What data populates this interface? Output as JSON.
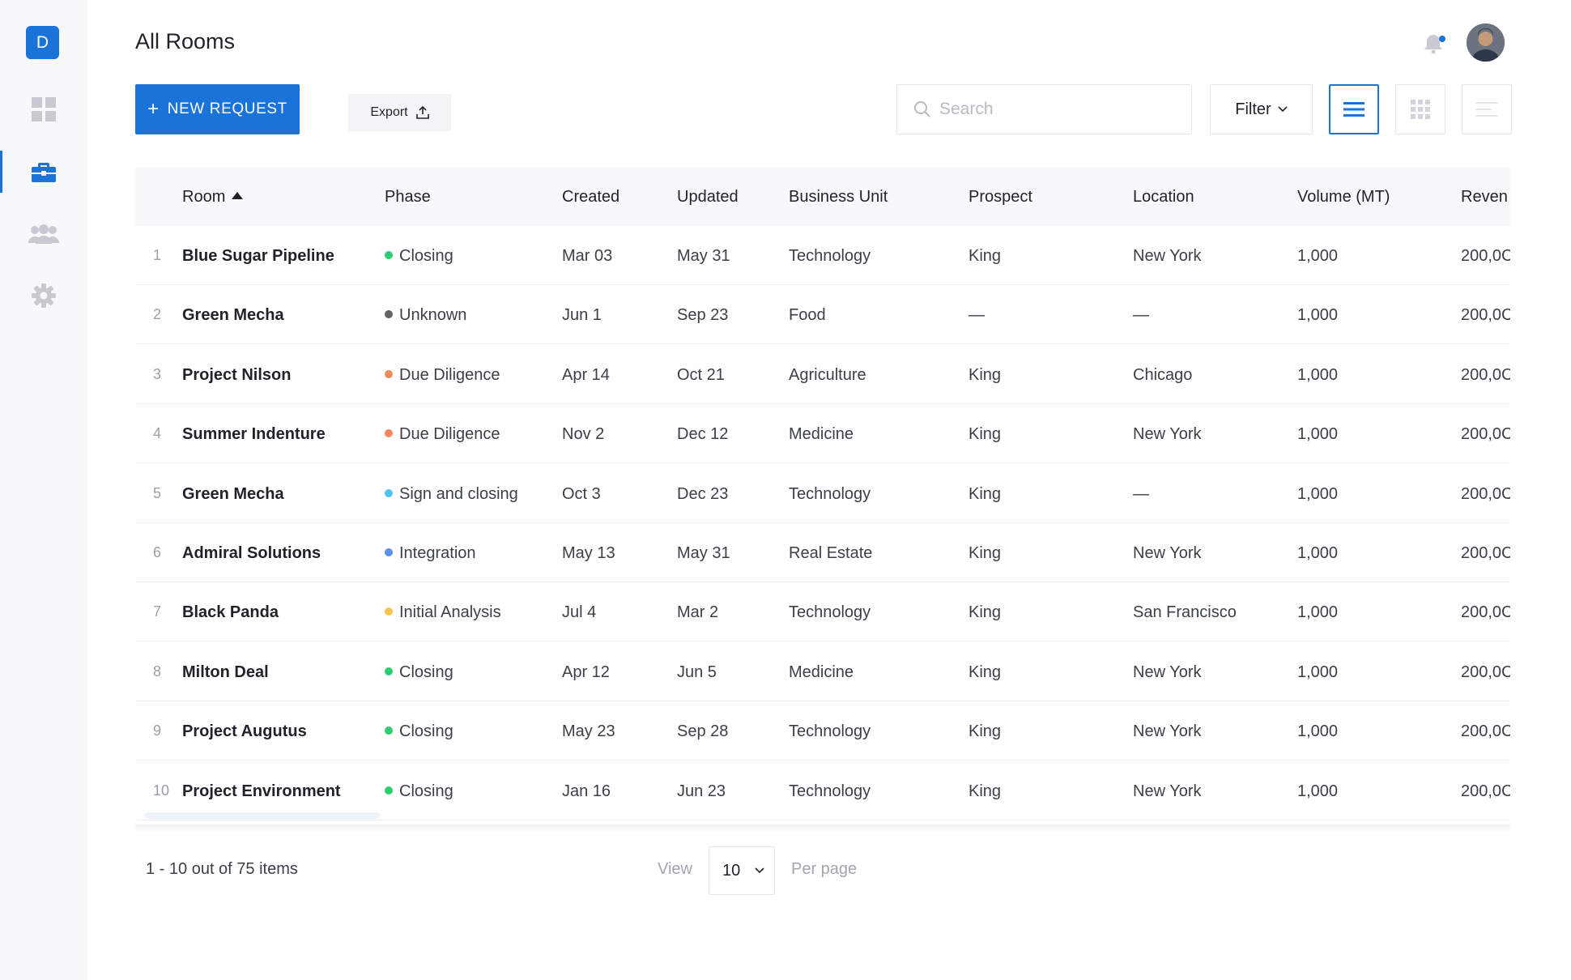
{
  "sidebar": {
    "logo_letter": "D",
    "items": [
      {
        "icon": "dashboard-icon",
        "active": false
      },
      {
        "icon": "briefcase-icon",
        "active": true
      },
      {
        "icon": "users-icon",
        "active": false
      },
      {
        "icon": "gear-icon",
        "active": false
      }
    ]
  },
  "header": {
    "title": "All Rooms"
  },
  "toolbar": {
    "new_request_label": "NEW REQUEST",
    "new_request_plus": "+",
    "export_label": "Export",
    "search_placeholder": "Search",
    "filter_label": "Filter"
  },
  "table": {
    "columns": {
      "room": "Room",
      "phase": "Phase",
      "created": "Created",
      "updated": "Updated",
      "business_unit": "Business Unit",
      "prospect": "Prospect",
      "location": "Location",
      "volume": "Volume (MT)",
      "revenue": "Reven"
    },
    "rows": [
      {
        "idx": "1",
        "room": "Blue Sugar Pipeline",
        "phase": "Closing",
        "phase_color": "#2ecc71",
        "created": "Mar 03",
        "updated": "May 31",
        "business_unit": "Technology",
        "prospect": "King",
        "location": "New York",
        "volume": "1,000",
        "revenue": "200,0C"
      },
      {
        "idx": "2",
        "room": "Green Mecha",
        "phase": "Unknown",
        "phase_color": "#5f6368",
        "created": "Jun 1",
        "updated": "Sep 23",
        "business_unit": "Food",
        "prospect": "—",
        "location": "—",
        "volume": "1,000",
        "revenue": "200,0C"
      },
      {
        "idx": "3",
        "room": "Project Nilson",
        "phase": "Due Diligence",
        "phase_color": "#f08a5d",
        "created": "Apr 14",
        "updated": "Oct 21",
        "business_unit": "Agriculture",
        "prospect": "King",
        "location": "Chicago",
        "volume": "1,000",
        "revenue": "200,0C"
      },
      {
        "idx": "4",
        "room": "Summer Indenture",
        "phase": "Due Diligence",
        "phase_color": "#f08a5d",
        "created": "Nov 2",
        "updated": "Dec 12",
        "business_unit": "Medicine",
        "prospect": "King",
        "location": "New York",
        "volume": "1,000",
        "revenue": "200,0C"
      },
      {
        "idx": "5",
        "room": "Green Mecha",
        "phase": "Sign and closing",
        "phase_color": "#4fc3f7",
        "created": "Oct 3",
        "updated": "Dec 23",
        "business_unit": "Technology",
        "prospect": "King",
        "location": "—",
        "volume": "1,000",
        "revenue": "200,0C"
      },
      {
        "idx": "6",
        "room": "Admiral Solutions",
        "phase": "Integration",
        "phase_color": "#5b8def",
        "created": "May 13",
        "updated": "May 31",
        "business_unit": "Real Estate",
        "prospect": "King",
        "location": "New York",
        "volume": "1,000",
        "revenue": "200,0C"
      },
      {
        "idx": "7",
        "room": "Black Panda",
        "phase": "Initial Analysis",
        "phase_color": "#f5c451",
        "created": "Jul 4",
        "updated": "Mar 2",
        "business_unit": "Technology",
        "prospect": "King",
        "location": "San Francisco",
        "volume": "1,000",
        "revenue": "200,0C"
      },
      {
        "idx": "8",
        "room": "Milton Deal",
        "phase": "Closing",
        "phase_color": "#2ecc71",
        "created": "Apr 12",
        "updated": "Jun 5",
        "business_unit": "Medicine",
        "prospect": "King",
        "location": "New York",
        "volume": "1,000",
        "revenue": "200,0C"
      },
      {
        "idx": "9",
        "room": "Project Augutus",
        "phase": "Closing",
        "phase_color": "#2ecc71",
        "created": "May 23",
        "updated": "Sep 28",
        "business_unit": "Technology",
        "prospect": "King",
        "location": "New York",
        "volume": "1,000",
        "revenue": "200,0C"
      },
      {
        "idx": "10",
        "room": "Project Environment",
        "phase": "Closing",
        "phase_color": "#2ecc71",
        "created": "Jan 16",
        "updated": "Jun 23",
        "business_unit": "Technology",
        "prospect": "King",
        "location": "New York",
        "volume": "1,000",
        "revenue": "200,0C"
      }
    ]
  },
  "pagination": {
    "range_text": "1 - 10 out of 75 items",
    "view_label": "View",
    "per_page_value": "10",
    "per_page_label": "Per page"
  },
  "colors": {
    "accent": "#1a73d9",
    "sidebar_bg": "#f7f8fa",
    "header_bg": "#f7f8fa"
  }
}
